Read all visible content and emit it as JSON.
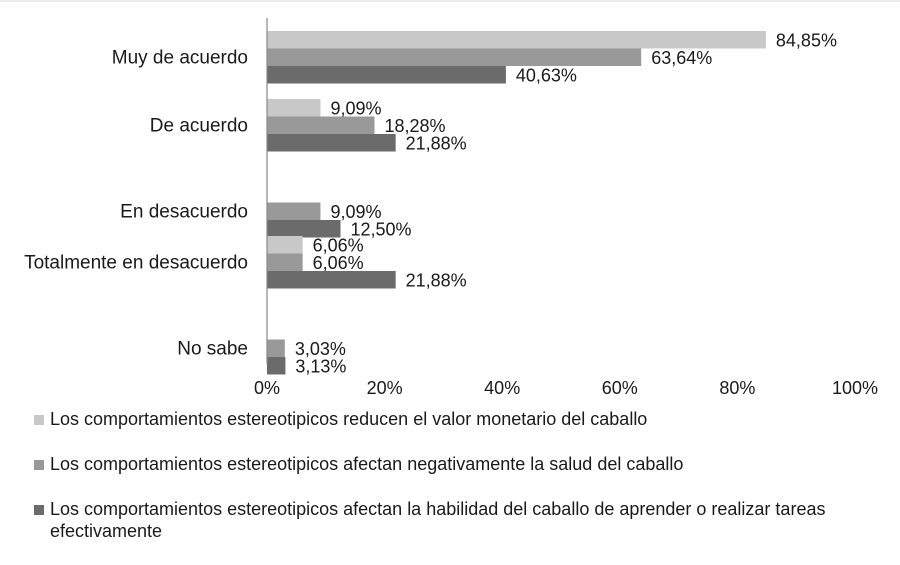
{
  "chart_data": {
    "type": "bar",
    "orientation": "horizontal",
    "categories": [
      "Muy de acuerdo",
      "De acuerdo",
      "En desacuerdo",
      "Totalmente en desacuerdo",
      "No sabe"
    ],
    "series": [
      {
        "name": "Los comportamientos estereotipicos reducen el valor monetario del caballo",
        "color": "#c8c8c8",
        "values": [
          84.85,
          9.09,
          null,
          6.06,
          null
        ],
        "labels": [
          "84,85%",
          "9,09%",
          "",
          "6,06%",
          ""
        ]
      },
      {
        "name": "Los comportamientos estereotipicos afectan negativamente la salud del caballo",
        "color": "#999999",
        "values": [
          63.64,
          18.28,
          9.09,
          6.06,
          3.03
        ],
        "labels": [
          "63,64%",
          "18,28%",
          "9,09%",
          "6,06%",
          "3,03%"
        ]
      },
      {
        "name": "Los comportamientos estereotipicos afectan la habilidad del caballo de aprender o realizar tareas efectivamente",
        "color": "#6b6b6b",
        "values": [
          40.63,
          21.88,
          12.5,
          21.88,
          3.13
        ],
        "labels": [
          "40,63%",
          "21,88%",
          "12,50%",
          "21,88%",
          "3,13%"
        ]
      }
    ],
    "x_ticks": [
      "0%",
      "20%",
      "40%",
      "60%",
      "80%",
      "100%"
    ],
    "xlim": [
      0,
      100
    ],
    "grid": false,
    "legend_position": "bottom"
  }
}
